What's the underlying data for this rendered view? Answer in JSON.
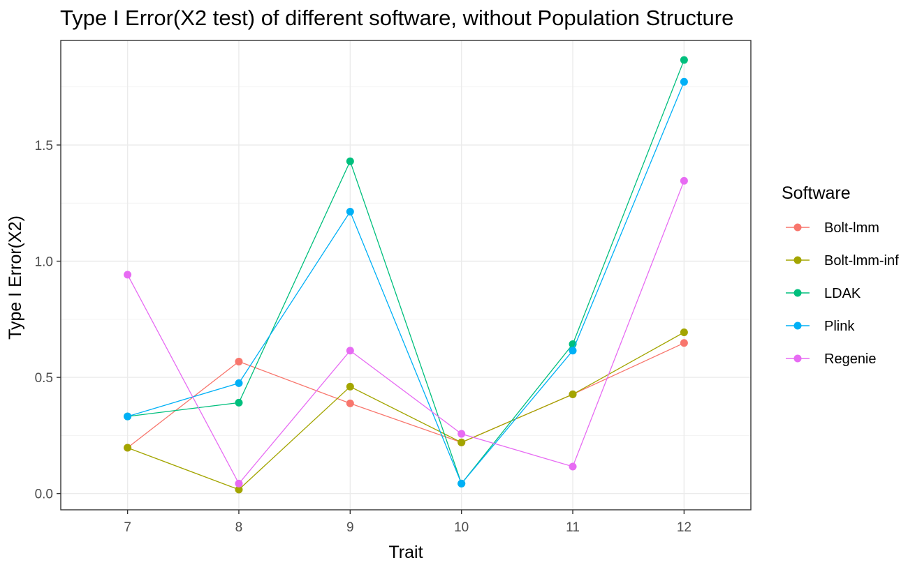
{
  "chart_data": {
    "type": "line",
    "title": "Type I Error(X2 test) of different software, without Population Structure",
    "xlabel": "Trait",
    "ylabel": "Type I Error(X2)",
    "x": [
      7,
      8,
      9,
      10,
      11,
      12
    ],
    "x_tick_labels": [
      "7",
      "8",
      "9",
      "10",
      "11",
      "12"
    ],
    "y_ticks": [
      0.0,
      0.5,
      1.0,
      1.5
    ],
    "y_tick_labels": [
      "0.0",
      "0.5",
      "1.0",
      "1.5"
    ],
    "xlim": [
      6.4,
      12.6
    ],
    "ylim": [
      -0.07,
      1.95
    ],
    "grid": true,
    "legend": {
      "title": "Software",
      "placement": "right"
    },
    "series": [
      {
        "name": "Bolt-lmm",
        "color": "#F8766D",
        "values": [
          0.197,
          0.568,
          0.388,
          0.22,
          0.427,
          0.648
        ]
      },
      {
        "name": "Bolt-lmm-inf",
        "color": "#A3A500",
        "values": [
          0.197,
          0.017,
          0.46,
          0.22,
          0.427,
          0.694
        ]
      },
      {
        "name": "LDAK",
        "color": "#00BF7D",
        "values": [
          0.332,
          0.391,
          1.43,
          0.043,
          0.643,
          1.866
        ]
      },
      {
        "name": "Plink",
        "color": "#00B0F6",
        "values": [
          0.332,
          0.475,
          1.213,
          0.043,
          0.615,
          1.772
        ]
      },
      {
        "name": "Regenie",
        "color": "#E76BF3",
        "values": [
          0.942,
          0.043,
          0.615,
          0.257,
          0.116,
          1.346
        ]
      }
    ]
  }
}
